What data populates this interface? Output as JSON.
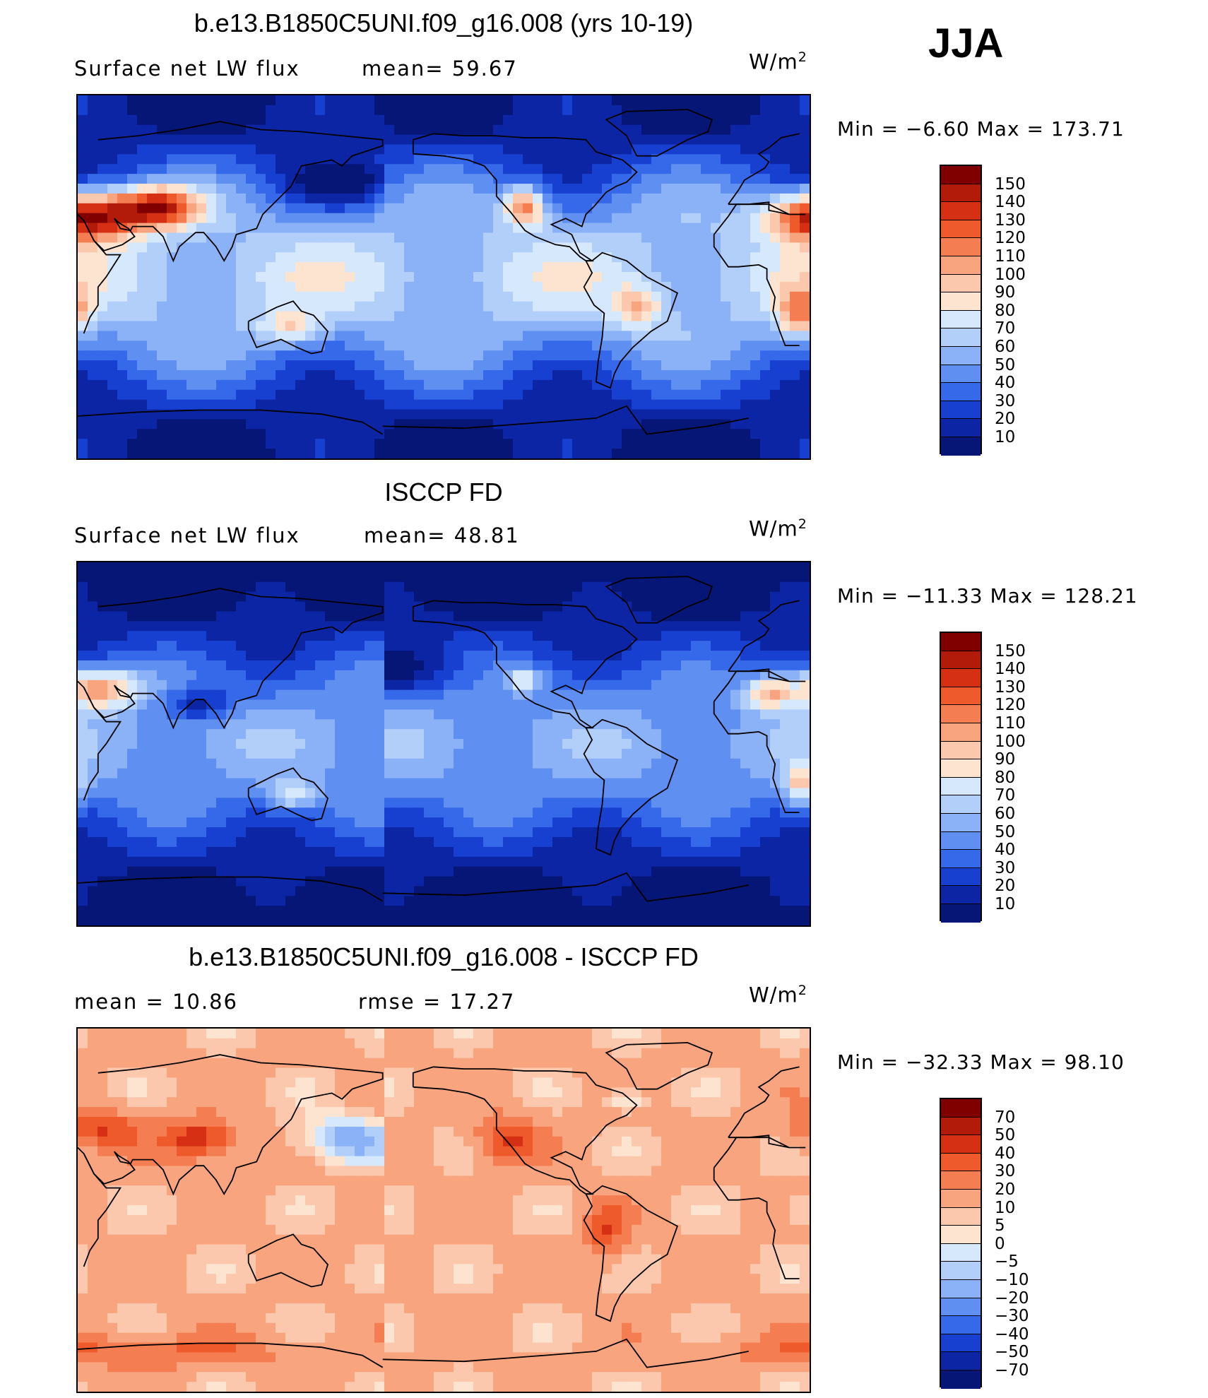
{
  "season": "JJA",
  "panels": [
    {
      "id": "model",
      "title": "b.e13.B1850C5UNI.f09_g16.008 (yrs 10-19)",
      "left_label": "Surface net LW flux",
      "stat1": "mean=   59.67",
      "stat2": "",
      "units": "W/m",
      "units_sup": "2",
      "minmax": "Min =   −6.60 Max = 173.71"
    },
    {
      "id": "obs",
      "title": "ISCCP FD",
      "left_label": "Surface net LW flux",
      "stat1": "mean=   48.81",
      "stat2": "",
      "units": "W/m",
      "units_sup": "2",
      "minmax": "Min = −11.33 Max = 128.21"
    },
    {
      "id": "diff",
      "title": "b.e13.B1850C5UNI.f09_g16.008 - ISCCP FD",
      "left_label": "mean =   10.86",
      "stat1": "rmse =   17.27",
      "stat2": "",
      "units": "W/m",
      "units_sup": "2",
      "minmax": "Min = −32.33 Max =   98.10"
    }
  ],
  "chart_data": [
    {
      "type": "heatmap",
      "title": "b.e13.B1850C5UNI.f09_g16.008 (yrs 10-19)",
      "variable": "Surface net LW flux",
      "units": "W/m2",
      "mean": 59.67,
      "min": -6.6,
      "max": 173.71,
      "colorbar_levels": [
        150,
        140,
        130,
        120,
        110,
        100,
        90,
        80,
        70,
        60,
        50,
        40,
        30,
        20,
        10
      ],
      "colorbar_labels": [
        "150",
        "140",
        "130",
        "120",
        "110",
        "100",
        "90",
        "80",
        "70",
        "60",
        "50",
        "40",
        "30",
        "20",
        "10"
      ],
      "colors": [
        "#800000",
        "#b21a0a",
        "#d52f14",
        "#ef5a2c",
        "#f47d52",
        "#f8a47e",
        "#fbc8ad",
        "#fde4d0",
        "#d6e8fb",
        "#b2cffa",
        "#8bb2f6",
        "#5f8ff0",
        "#3668ea",
        "#1840d0",
        "#0c25a4",
        "#061677"
      ]
    },
    {
      "type": "heatmap",
      "title": "ISCCP FD",
      "variable": "Surface net LW flux",
      "units": "W/m2",
      "mean": 48.81,
      "min": -11.33,
      "max": 128.21,
      "colorbar_levels": [
        150,
        140,
        130,
        120,
        110,
        100,
        90,
        80,
        70,
        60,
        50,
        40,
        30,
        20,
        10
      ],
      "colorbar_labels": [
        "150",
        "140",
        "130",
        "120",
        "110",
        "100",
        "90",
        "80",
        "70",
        "60",
        "50",
        "40",
        "30",
        "20",
        "10"
      ],
      "colors": [
        "#800000",
        "#b21a0a",
        "#d52f14",
        "#ef5a2c",
        "#f47d52",
        "#f8a47e",
        "#fbc8ad",
        "#fde4d0",
        "#d6e8fb",
        "#b2cffa",
        "#8bb2f6",
        "#5f8ff0",
        "#3668ea",
        "#1840d0",
        "#0c25a4",
        "#061677"
      ]
    },
    {
      "type": "heatmap",
      "title": "b.e13.B1850C5UNI.f09_g16.008 - ISCCP FD",
      "variable": "difference",
      "units": "W/m2",
      "mean": 10.86,
      "rmse": 17.27,
      "min": -32.33,
      "max": 98.1,
      "colorbar_levels": [
        70,
        50,
        40,
        30,
        20,
        10,
        5,
        0,
        -5,
        -10,
        -20,
        -30,
        -40,
        -50,
        -70
      ],
      "colorbar_labels": [
        "70",
        "50",
        "40",
        "30",
        "20",
        "10",
        "5",
        "0",
        "−5",
        "−10",
        "−20",
        "−30",
        "−40",
        "−50",
        "−70"
      ],
      "colors": [
        "#800000",
        "#b21a0a",
        "#d52f14",
        "#ef5a2c",
        "#f47d52",
        "#f8a47e",
        "#fbc8ad",
        "#fde4d0",
        "#d6e8fb",
        "#b2cffa",
        "#8bb2f6",
        "#5f8ff0",
        "#3668ea",
        "#1840d0",
        "#0c25a4",
        "#061677"
      ]
    }
  ]
}
